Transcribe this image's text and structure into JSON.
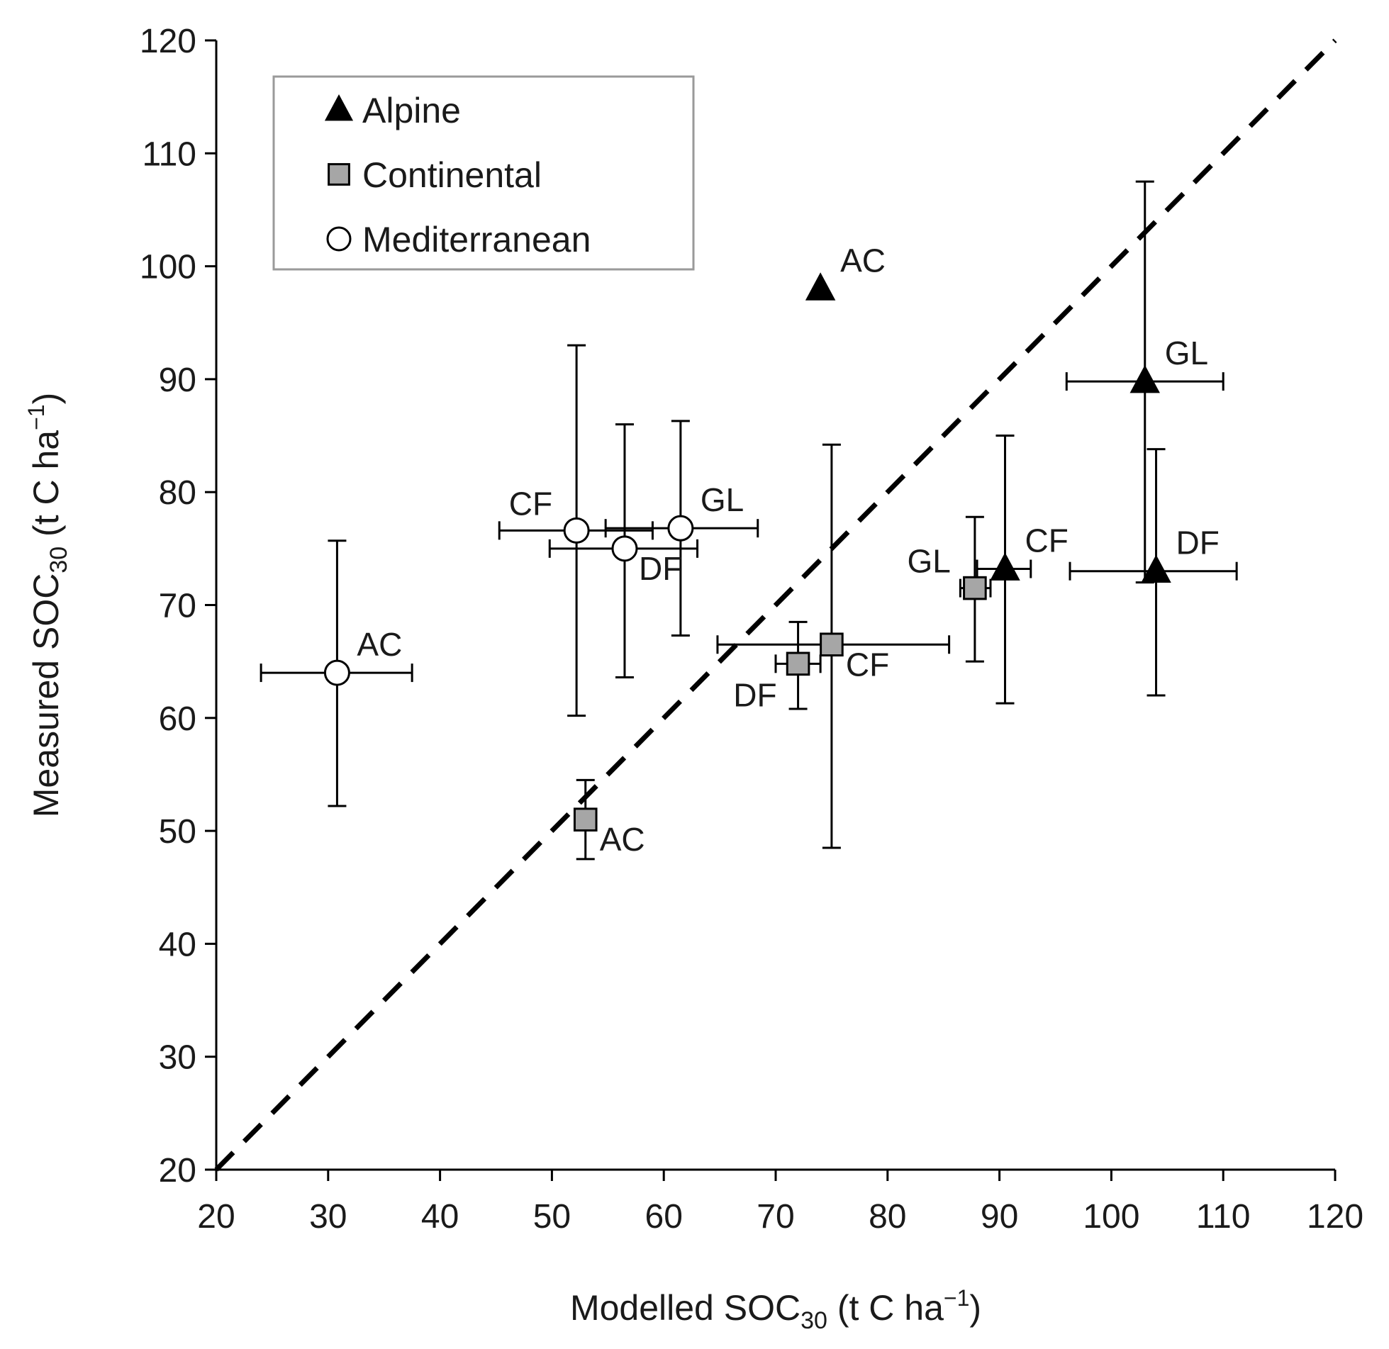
{
  "chart_data": {
    "type": "scatter",
    "title": "",
    "xlabel": {
      "main": "Modelled SOC",
      "sub": "30",
      "unit_pre": " (t C ha",
      "unit_sup": "−1",
      "unit_post": ")"
    },
    "ylabel": {
      "main": "Measured SOC",
      "sub": "30",
      "unit_pre": " (t C ha",
      "unit_sup": "−1",
      "unit_post": ")"
    },
    "xlim": [
      20,
      120
    ],
    "ylim": [
      20,
      120
    ],
    "xticks": [
      "20",
      "30",
      "40",
      "50",
      "60",
      "70",
      "80",
      "90",
      "100",
      "110",
      "120"
    ],
    "yticks": [
      "20",
      "30",
      "40",
      "50",
      "60",
      "70",
      "80",
      "90",
      "100",
      "110",
      "120"
    ],
    "reference_line": {
      "type": "1:1",
      "style": "dashed",
      "from": [
        20,
        20
      ],
      "to": [
        120,
        120
      ]
    },
    "legend": {
      "placement": "top-left",
      "entries": [
        {
          "name": "Alpine",
          "marker": "triangle",
          "fill": "#000000"
        },
        {
          "name": "Continental",
          "marker": "square",
          "fill": "#a6a6a6"
        },
        {
          "name": "Mediterranean",
          "marker": "circle",
          "fill": "#ffffff"
        }
      ]
    },
    "series": [
      {
        "name": "Alpine",
        "marker": "triangle",
        "fill": "#000000",
        "points": [
          {
            "label": "AC",
            "x": 74.0,
            "y": 98.0,
            "xerr": [
              74.0,
              74.0
            ],
            "yerr": [
              98.0,
              98.0
            ],
            "label_pos": "upper-right"
          },
          {
            "label": "GL",
            "x": 103.0,
            "y": 89.8,
            "xerr": [
              96.0,
              110.0
            ],
            "yerr": [
              72.0,
              107.5
            ],
            "label_pos": "upper-right"
          },
          {
            "label": "CF",
            "x": 90.5,
            "y": 73.2,
            "xerr": [
              88.0,
              92.8
            ],
            "yerr": [
              61.3,
              85.0
            ],
            "label_pos": "upper-right"
          },
          {
            "label": "DF",
            "x": 104.0,
            "y": 73.0,
            "xerr": [
              96.3,
              111.2
            ],
            "yerr": [
              62.0,
              83.8
            ],
            "label_pos": "upper-right"
          }
        ]
      },
      {
        "name": "Continental",
        "marker": "square",
        "fill": "#a6a6a6",
        "points": [
          {
            "label": "AC",
            "x": 53.0,
            "y": 51.0,
            "xerr": [
              53.0,
              53.0
            ],
            "yerr": [
              47.5,
              54.5
            ],
            "label_pos": "lower-right"
          },
          {
            "label": "DF",
            "x": 72.0,
            "y": 64.8,
            "xerr": [
              70.0,
              74.0
            ],
            "yerr": [
              60.8,
              68.5
            ],
            "label_pos": "lower-left"
          },
          {
            "label": "CF",
            "x": 75.0,
            "y": 66.5,
            "xerr": [
              64.8,
              85.5
            ],
            "yerr": [
              48.5,
              84.2
            ],
            "label_pos": "lower-right"
          },
          {
            "label": "GL",
            "x": 87.8,
            "y": 71.5,
            "xerr": [
              86.5,
              89.2
            ],
            "yerr": [
              65.0,
              77.8
            ],
            "label_pos": "upper-left"
          }
        ]
      },
      {
        "name": "Mediterranean",
        "marker": "circle",
        "fill": "#ffffff",
        "points": [
          {
            "label": "AC",
            "x": 30.8,
            "y": 64.0,
            "xerr": [
              24.0,
              37.5
            ],
            "yerr": [
              52.2,
              75.7
            ],
            "label_pos": "upper-right"
          },
          {
            "label": "CF",
            "x": 52.2,
            "y": 76.6,
            "xerr": [
              45.3,
              59.0
            ],
            "yerr": [
              60.2,
              93.0
            ],
            "label_pos": "upper-left"
          },
          {
            "label": "DF",
            "x": 56.5,
            "y": 75.0,
            "xerr": [
              49.8,
              63.0
            ],
            "yerr": [
              63.6,
              86.0
            ],
            "label_pos": "lower-right"
          },
          {
            "label": "GL",
            "x": 61.5,
            "y": 76.8,
            "xerr": [
              54.8,
              68.4
            ],
            "yerr": [
              67.3,
              86.3
            ],
            "label_pos": "upper-right"
          }
        ]
      }
    ]
  }
}
